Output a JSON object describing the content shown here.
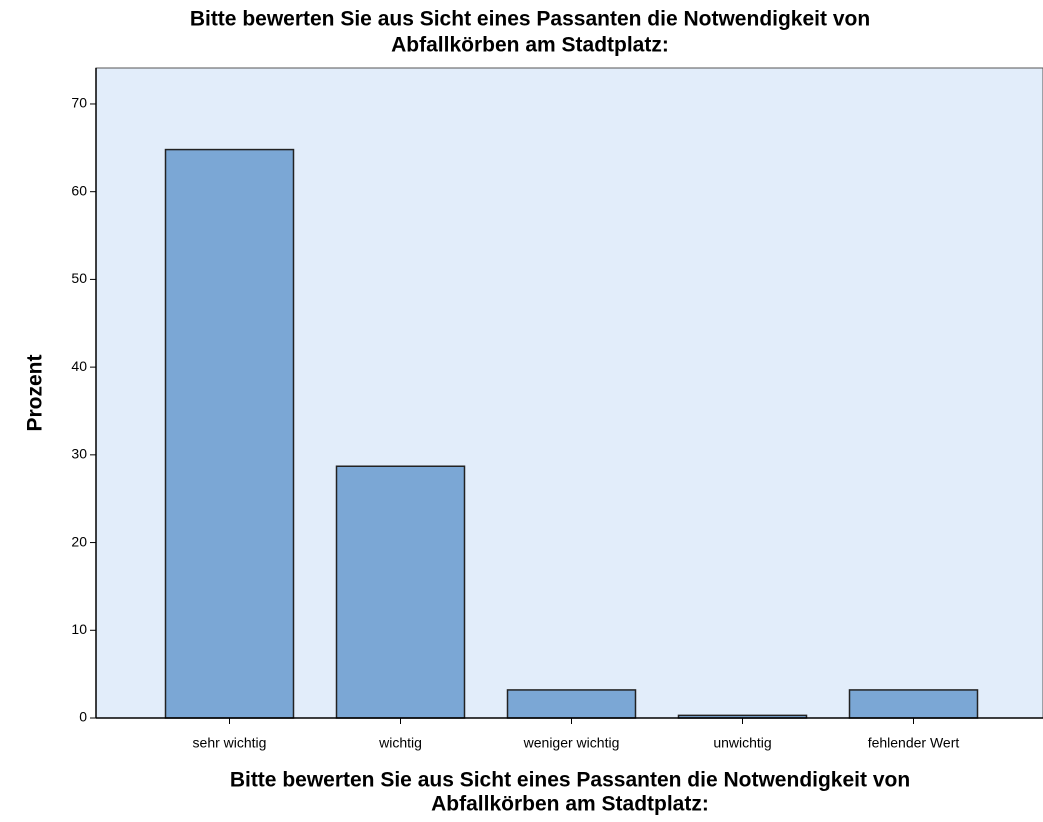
{
  "chart_data": {
    "type": "bar",
    "title": [
      "Bitte bewerten Sie aus Sicht eines Passanten die Notwendigkeit von",
      "Abfallkörben am Stadtplatz:"
    ],
    "x_label": [
      "Bitte bewerten Sie aus Sicht eines Passanten die Notwendigkeit von",
      "Abfallkörben am Stadtplatz:"
    ],
    "y_label": "Prozent",
    "categories": [
      "sehr wichtig",
      "wichtig",
      "weniger wichtig",
      "unwichtig",
      "fehlender Wert"
    ],
    "values": [
      64.8,
      28.7,
      3.2,
      0.3,
      3.2
    ],
    "color": "#7ba7d5",
    "ylim": [
      0,
      74.1
    ],
    "yticks": [
      0,
      10,
      20,
      30,
      40,
      50,
      60,
      70
    ]
  }
}
